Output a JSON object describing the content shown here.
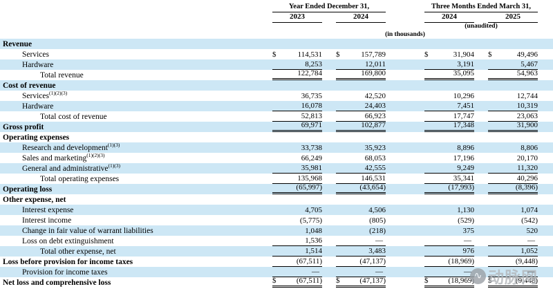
{
  "colors": {
    "row_highlight": "#cde7f5",
    "rule_color": "#000000",
    "watermark_color": "#b2b6ba"
  },
  "watermark": {
    "logo": "∿",
    "text": "动脉网"
  },
  "table": {
    "currency_symbol": "$",
    "header": {
      "groups": [
        {
          "label": "Year Ended December 31,",
          "years": [
            "2023",
            "2024"
          ]
        },
        {
          "label": "Three Months Ended March 31,",
          "years": [
            "2024",
            "2025"
          ]
        }
      ],
      "unaudited_note": "(unaudited)",
      "units_note": "(in thousands)"
    },
    "rows": [
      {
        "label": "Revenue",
        "indent": 0,
        "bold": true,
        "shaded": true,
        "values": [
          "",
          "",
          "",
          ""
        ]
      },
      {
        "label": "Services",
        "indent": 1,
        "shaded": false,
        "dollar": true,
        "values": [
          "114,531",
          "157,789",
          "31,904",
          "49,496"
        ]
      },
      {
        "label": "Hardware",
        "indent": 1,
        "shaded": true,
        "rule": "single",
        "values": [
          "8,253",
          "12,011",
          "3,191",
          "5,467"
        ]
      },
      {
        "label": "Total revenue",
        "indent": 2,
        "shaded": false,
        "rule": "double",
        "values": [
          "122,784",
          "169,800",
          "35,095",
          "54,963"
        ]
      },
      {
        "label": "Cost of revenue",
        "indent": 0,
        "bold": true,
        "shaded": true,
        "values": [
          "",
          "",
          "",
          ""
        ]
      },
      {
        "label": "Services",
        "sup": "(1)(2)(3)",
        "indent": 1,
        "shaded": false,
        "values": [
          "36,735",
          "42,520",
          "10,296",
          "12,744"
        ]
      },
      {
        "label": "Hardware",
        "indent": 1,
        "shaded": true,
        "rule": "single",
        "values": [
          "16,078",
          "24,403",
          "7,451",
          "10,319"
        ]
      },
      {
        "label": "Total cost of revenue",
        "indent": 2,
        "shaded": false,
        "rule": "single",
        "values": [
          "52,813",
          "66,923",
          "17,747",
          "23,063"
        ]
      },
      {
        "label": "Gross profit",
        "indent": 0,
        "bold": true,
        "shaded": true,
        "rule": "double",
        "values": [
          "69,971",
          "102,877",
          "17,348",
          "31,900"
        ]
      },
      {
        "label": "Operating expenses",
        "indent": 0,
        "bold": true,
        "shaded": false,
        "values": [
          "",
          "",
          "",
          ""
        ]
      },
      {
        "label": "Research and development",
        "sup": "(1)(3)",
        "indent": 1,
        "shaded": true,
        "values": [
          "33,738",
          "35,923",
          "8,896",
          "8,806"
        ]
      },
      {
        "label": "Sales and marketing",
        "sup": "(1)(2)(3)",
        "indent": 1,
        "shaded": false,
        "values": [
          "66,249",
          "68,053",
          "17,196",
          "20,170"
        ]
      },
      {
        "label": "General and administrative",
        "sup": "(1)(3)",
        "indent": 1,
        "shaded": true,
        "rule": "single",
        "values": [
          "35,981",
          "42,555",
          "9,249",
          "11,320"
        ]
      },
      {
        "label": "Total operating expenses",
        "indent": 2,
        "shaded": false,
        "rule": "single",
        "values": [
          "135,968",
          "146,531",
          "35,341",
          "40,296"
        ]
      },
      {
        "label": "Operating loss",
        "indent": 0,
        "bold": true,
        "shaded": true,
        "rule": "double",
        "values": [
          "(65,997)",
          "(43,654)",
          "(17,993)",
          "(8,396)"
        ]
      },
      {
        "label": "Other expense, net",
        "indent": 0,
        "bold": true,
        "shaded": false,
        "values": [
          "",
          "",
          "",
          ""
        ]
      },
      {
        "label": "Interest expense",
        "indent": 1,
        "shaded": true,
        "values": [
          "4,705",
          "4,506",
          "1,130",
          "1,074"
        ]
      },
      {
        "label": "Interest income",
        "indent": 1,
        "shaded": false,
        "values": [
          "(5,775)",
          "(805)",
          "(529)",
          "(542)"
        ]
      },
      {
        "label": "Change in fair value of warrant liabilities",
        "indent": 1,
        "shaded": true,
        "values": [
          "1,048",
          "(218)",
          "375",
          "520"
        ]
      },
      {
        "label": "Loss on debt extinguishment",
        "indent": 1,
        "shaded": false,
        "rule": "single",
        "values": [
          "1,536",
          "—",
          "—",
          "—"
        ]
      },
      {
        "label": "Total other expense, net",
        "indent": 2,
        "shaded": true,
        "rule": "single",
        "values": [
          "1,514",
          "3,483",
          "976",
          "1,052"
        ]
      },
      {
        "label": "Loss before provision for income taxes",
        "indent": 0,
        "bold": true,
        "shaded": false,
        "rule": "single",
        "values": [
          "(67,511)",
          "(47,137)",
          "(18,969)",
          "(9,448)"
        ]
      },
      {
        "label": "Provision for income taxes",
        "indent": 1,
        "shaded": true,
        "rule": "single",
        "values": [
          "—",
          "—",
          "—",
          "—"
        ]
      },
      {
        "label": "Net loss and comprehensive loss",
        "indent": 0,
        "bold": true,
        "shaded": false,
        "dollar": true,
        "rule": "double",
        "values": [
          "(67,511)",
          "(47,137)",
          "(18,969)",
          "(9,448)"
        ]
      }
    ]
  }
}
